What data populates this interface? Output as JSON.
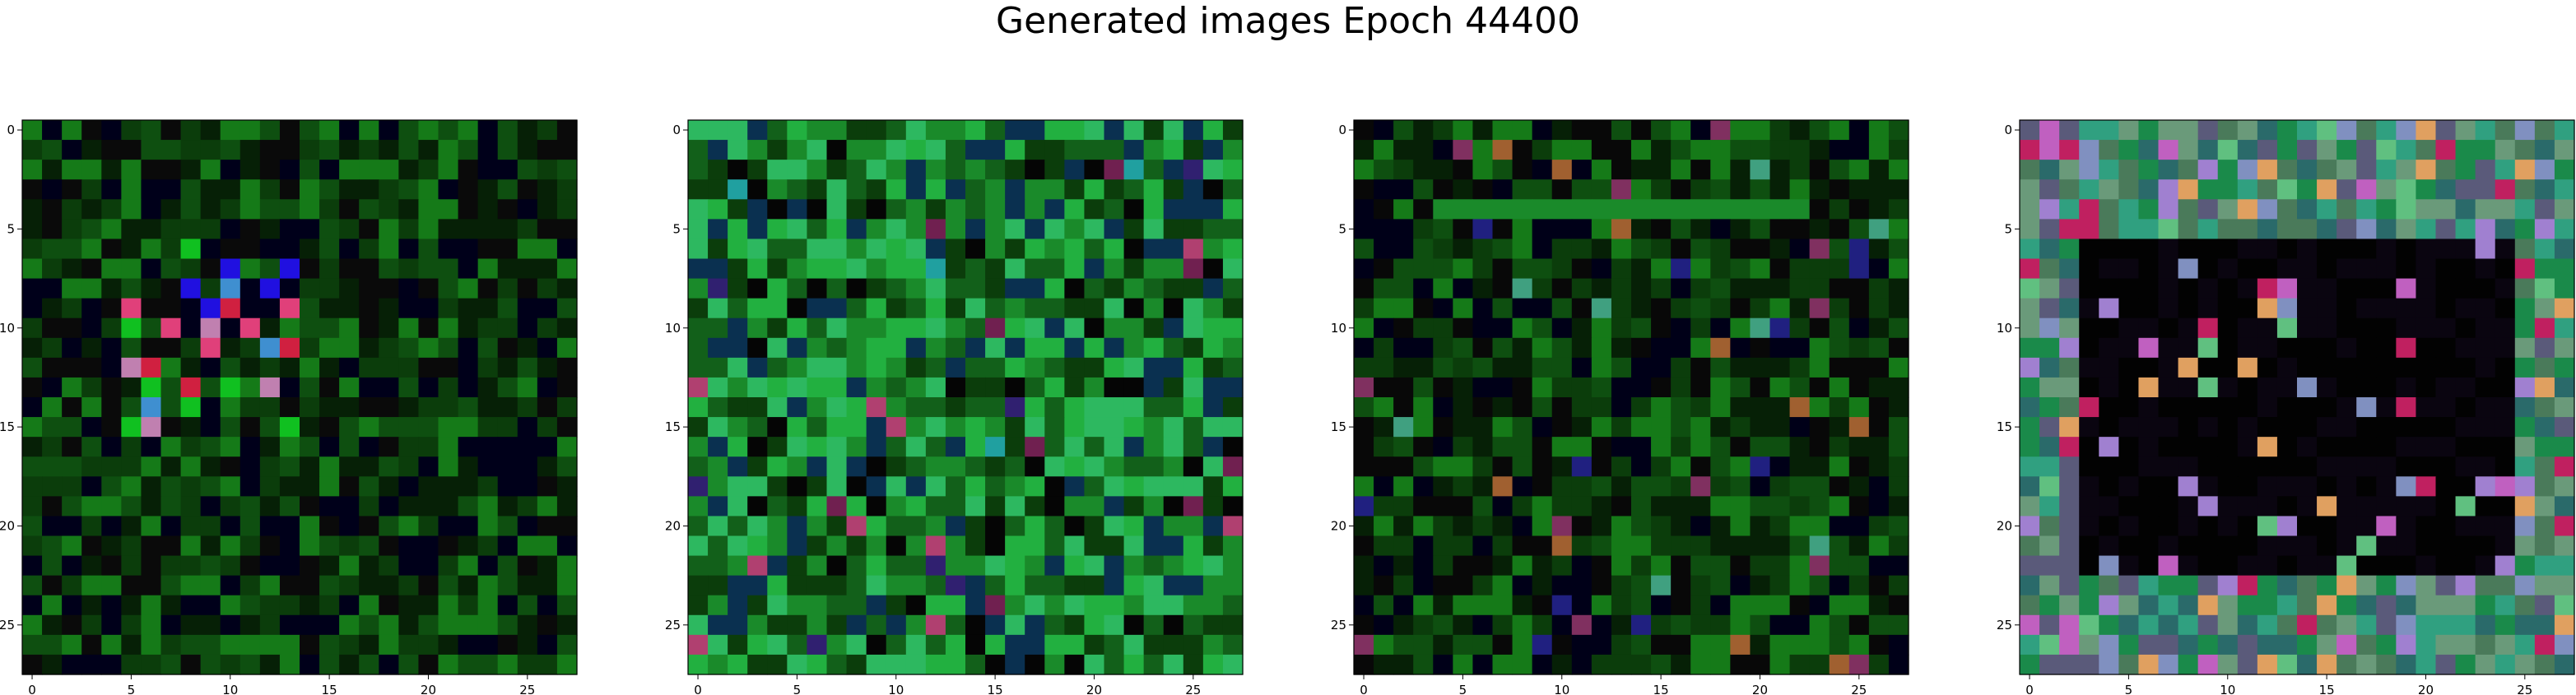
{
  "figure": {
    "title": "Generated images Epoch 44400"
  },
  "chart_data": [
    {
      "type": "heatmap",
      "rows": 28,
      "cols": 28,
      "xticks": [
        0,
        5,
        10,
        15,
        20,
        25
      ],
      "yticks": [
        0,
        5,
        10,
        15,
        20,
        25
      ],
      "xlim": [
        -0.5,
        27.5
      ],
      "ylim": [
        27.5,
        -0.5
      ],
      "palette": [
        "#062006",
        "#0b3d0b",
        "#0e4f10",
        "#157a18",
        "#0a0a0a",
        "#00001a"
      ],
      "pattern": "dark green noise with a bright magenta/blue/cyan cluster near rows 6-15, cols 5-13",
      "highlights": [
        "#e0407a",
        "#2010e0",
        "#3f8fd0",
        "#c080b0",
        "#d02040",
        "#10c020"
      ]
    },
    {
      "type": "heatmap",
      "rows": 28,
      "cols": 28,
      "xticks": [
        0,
        5,
        10,
        15,
        20,
        25
      ],
      "yticks": [
        0,
        5,
        10,
        15,
        20,
        25
      ],
      "xlim": [
        -0.5,
        27.5
      ],
      "ylim": [
        27.5,
        -0.5
      ],
      "palette": [
        "#0b3d0b",
        "#12601a",
        "#1a8a2a",
        "#22b040",
        "#2db860",
        "#0a3050"
      ],
      "pattern": "bright green noise with teal accents and scattered dark pixels",
      "highlights": [
        "#702050",
        "#20a0a0",
        "#b04070",
        "#302070"
      ]
    },
    {
      "type": "heatmap",
      "rows": 28,
      "cols": 28,
      "xticks": [
        0,
        5,
        10,
        15,
        20,
        25
      ],
      "yticks": [
        0,
        5,
        10,
        15,
        20,
        25
      ],
      "xlim": [
        -0.5,
        27.5
      ],
      "ylim": [
        27.5,
        -0.5
      ],
      "palette": [
        "#062006",
        "#0b3d0b",
        "#0e4f10",
        "#157a18",
        "#080808",
        "#000018"
      ],
      "pattern": "dark green noise with a brighter green band around row 4",
      "highlights": [
        "#803060",
        "#202080",
        "#40a080",
        "#a06030"
      ]
    },
    {
      "type": "heatmap",
      "rows": 28,
      "cols": 28,
      "xticks": [
        0,
        5,
        10,
        15,
        20,
        25
      ],
      "yticks": [
        0,
        5,
        10,
        15,
        20,
        25
      ],
      "xlim": [
        -0.5,
        27.5
      ],
      "ylim": [
        27.5,
        -0.5
      ],
      "palette": [
        "#1a8a4a",
        "#2a6a6a",
        "#4a7a5a",
        "#6a9a7a",
        "#5a5a7a",
        "#30a080"
      ],
      "pattern": "dark near-black center (rows ~6-22, cols ~3-24) framed by a colorful pastel border",
      "highlights": [
        "#c060c0",
        "#a080d0",
        "#e0a060",
        "#c02060",
        "#8090c0",
        "#60c080"
      ]
    }
  ]
}
